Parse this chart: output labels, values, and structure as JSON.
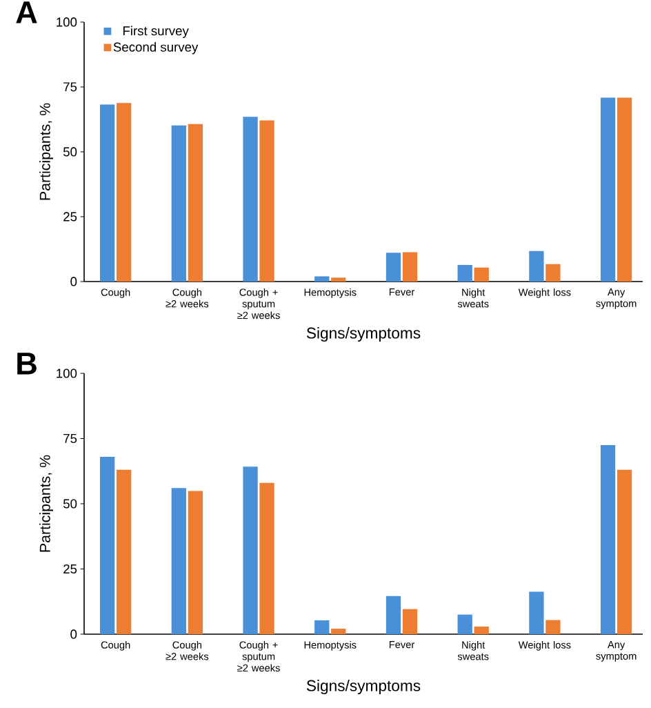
{
  "chart_data": [
    {
      "type": "bar",
      "title": "A",
      "categories": [
        "Cough",
        "Cough ≥2 weeks",
        "Cough + sputum ≥2 weeks",
        "Hemoptysis",
        "Fever",
        "Night sweats",
        "Weight loss",
        "Any symptom"
      ],
      "series": [
        {
          "name": "First survey",
          "color": "#4a90d9",
          "values": [
            68.2,
            60.2,
            63.5,
            2,
            11.1,
            6.4,
            11.8,
            70.9
          ]
        },
        {
          "name": "Second survey",
          "color": "#ed7d31",
          "values": [
            68.8,
            60.7,
            62.1,
            1.5,
            11.3,
            5.4,
            6.7,
            70.9
          ]
        }
      ],
      "ylim": [
        0,
        100
      ],
      "yticks": [
        0,
        25,
        50,
        75,
        100
      ],
      "xlabel": "Signs/symptoms",
      "ylabel": "Participants, %",
      "legend": "top left"
    },
    {
      "type": "bar",
      "title": "B",
      "categories": [
        "Cough",
        "Cough ≥2 weeks",
        "Cough + sputum ≥2 weeks",
        "Hemoptysis",
        "Fever",
        "Night sweats",
        "Weight loss",
        "Any symptom"
      ],
      "series": [
        {
          "color": "#4a90d9",
          "values": [
            68,
            56,
            64.2,
            5.3,
            14.6,
            7.5,
            16.3,
            72.5
          ]
        },
        {
          "color": "#ed7d31",
          "values": [
            63,
            54.9,
            58,
            2.1,
            9.6,
            2.9,
            5.4,
            63
          ]
        }
      ],
      "ylim": [
        0,
        100
      ],
      "yticks": [
        0,
        25,
        50,
        75,
        100
      ],
      "xlabel": "Signs/symptoms",
      "ylabel": "Participants, %",
      "legend": false
    }
  ]
}
